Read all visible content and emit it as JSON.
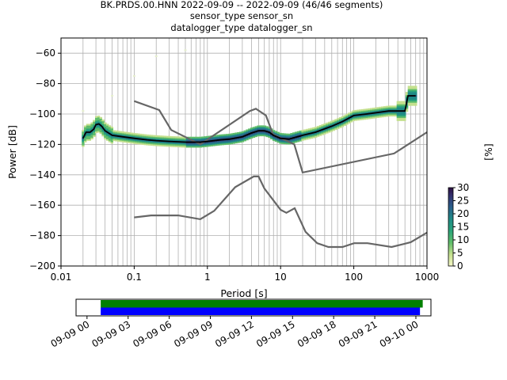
{
  "title": {
    "line1": "BK.PRDS.00.HNN   2022-09-09 -- 2022-09-09  (46/46 segments)",
    "line2": "sensor_type  sensor_sn",
    "line3": "datalogger_type  datalogger_sn"
  },
  "chart_data": [
    {
      "type": "heatmap",
      "xlabel": "Period [s]",
      "ylabel": "Power [dB]",
      "xscale": "log",
      "xlim": [
        0.01,
        1000
      ],
      "ylim": [
        -200,
        -50
      ],
      "x_ticks": [
        "0.01",
        "0.1",
        "1",
        "10",
        "100",
        "1000"
      ],
      "y_ticks": [
        -60,
        -80,
        -100,
        -120,
        -140,
        -160,
        -180,
        -200
      ],
      "grid": true,
      "mode_curve": {
        "name": "mode",
        "color": "#000000",
        "points": [
          [
            0.02,
            -116
          ],
          [
            0.022,
            -112
          ],
          [
            0.025,
            -112
          ],
          [
            0.028,
            -110
          ],
          [
            0.03,
            -107
          ],
          [
            0.033,
            -106.5
          ],
          [
            0.036,
            -108
          ],
          [
            0.04,
            -111
          ],
          [
            0.05,
            -114
          ],
          [
            0.07,
            -115
          ],
          [
            0.1,
            -116
          ],
          [
            0.15,
            -117
          ],
          [
            0.2,
            -117.5
          ],
          [
            0.3,
            -118
          ],
          [
            0.5,
            -118.5
          ],
          [
            0.8,
            -118.5
          ],
          [
            1,
            -118
          ],
          [
            1.5,
            -117
          ],
          [
            2,
            -116.5
          ],
          [
            3,
            -115
          ],
          [
            4,
            -112.5
          ],
          [
            5,
            -111
          ],
          [
            6,
            -111
          ],
          [
            7,
            -112
          ],
          [
            8,
            -114
          ],
          [
            10,
            -116
          ],
          [
            13,
            -116.5
          ],
          [
            20,
            -114
          ],
          [
            30,
            -112
          ],
          [
            50,
            -108
          ],
          [
            70,
            -105
          ],
          [
            100,
            -101
          ],
          [
            150,
            -100
          ],
          [
            300,
            -98
          ],
          [
            500,
            -98
          ],
          [
            550,
            -88
          ],
          [
            700,
            -88
          ]
        ]
      },
      "noise_models": [
        {
          "points": [
            [
              0.1,
              -91.5
            ],
            [
              0.22,
              -97.4
            ],
            [
              0.32,
              -110.5
            ],
            [
              0.8,
              -120
            ],
            [
              3.8,
              -98
            ],
            [
              4.6,
              -96.5
            ],
            [
              6.3,
              -101
            ],
            [
              7.9,
              -113.5
            ],
            [
              15.4,
              -120
            ],
            [
              20,
              -138.5
            ],
            [
              354.8,
              -126
            ],
            [
              1000,
              -112
            ]
          ]
        },
        {
          "points": [
            [
              0.1,
              -168
            ],
            [
              0.17,
              -166.7
            ],
            [
              0.4,
              -166.7
            ],
            [
              0.8,
              -169.2
            ],
            [
              1.24,
              -163.7
            ],
            [
              2.4,
              -148.1
            ],
            [
              4.3,
              -141.1
            ],
            [
              5.0,
              -141.1
            ],
            [
              6.0,
              -149
            ],
            [
              10,
              -163
            ],
            [
              12,
              -165
            ],
            [
              15.6,
              -162
            ],
            [
              21.9,
              -177.5
            ],
            [
              31.6,
              -185.0
            ],
            [
              45.0,
              -187.5
            ],
            [
              70.0,
              -187.5
            ],
            [
              101.0,
              -185.0
            ],
            [
              154.0,
              -185.0
            ],
            [
              328.0,
              -187.5
            ],
            [
              600.0,
              -184.4
            ],
            [
              1000.0,
              -178
            ]
          ]
        }
      ],
      "colorbar": {
        "label": "[%]",
        "ticks": [
          0,
          5,
          10,
          15,
          20,
          25,
          30
        ],
        "range": [
          0,
          30
        ]
      }
    },
    {
      "type": "timeline",
      "x_ticks": [
        "09-09 00",
        "09-09 03",
        "09-09 06",
        "09-09 09",
        "09-09 12",
        "09-09 15",
        "09-09 18",
        "09-09 21",
        "09-10 00"
      ],
      "bars": [
        {
          "color": "#008000",
          "start_hour": 1.0,
          "end_hour": 24.5
        },
        {
          "color": "#0000ff",
          "start_hour": 1.0,
          "end_hour": 24.3
        }
      ]
    }
  ]
}
